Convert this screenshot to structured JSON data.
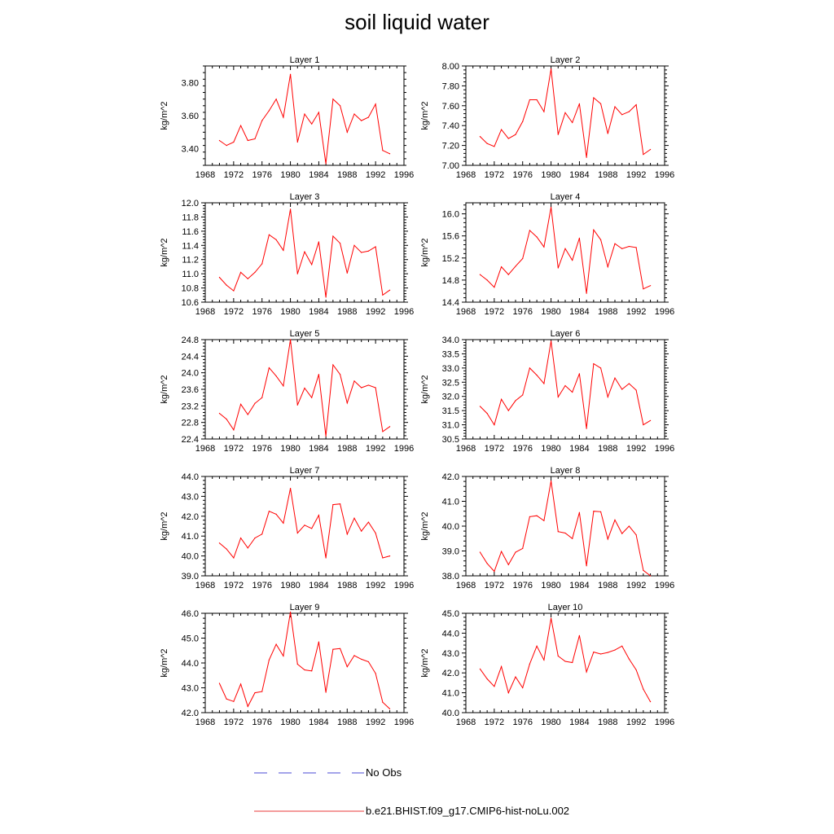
{
  "title": "soil liquid water",
  "legend": [
    {
      "label": "No Obs",
      "style": "dashed",
      "color": "#4a4ad6"
    },
    {
      "label": "b.e21.BHIST.f09_g17.CMIP6-hist-noLu.002",
      "style": "solid",
      "color": "#e8383a"
    }
  ],
  "chart_data": [
    {
      "type": "line",
      "title": "Layer 1",
      "ylabel": "kg/m^2",
      "xlim": [
        1968,
        1996
      ],
      "ylim": [
        3.3,
        3.9
      ],
      "xticks": [
        1968,
        1972,
        1976,
        1980,
        1984,
        1988,
        1992,
        1996
      ],
      "yticks": [
        "3.40",
        "3.60",
        "3.80"
      ],
      "grid": false,
      "series": [
        {
          "name": "b.e21.BHIST.f09_g17.CMIP6-hist-noLu.002",
          "color": "#ff0000",
          "x": [
            1970,
            1971,
            1972,
            1973,
            1974,
            1975,
            1976,
            1977,
            1978,
            1979,
            1980,
            1981,
            1982,
            1983,
            1984,
            1985,
            1986,
            1987,
            1988,
            1989,
            1990,
            1991,
            1992,
            1993,
            1994
          ],
          "y": [
            3.45,
            3.42,
            3.44,
            3.54,
            3.45,
            3.46,
            3.57,
            3.63,
            3.7,
            3.59,
            3.85,
            3.44,
            3.61,
            3.55,
            3.62,
            3.31,
            3.7,
            3.66,
            3.5,
            3.61,
            3.57,
            3.59,
            3.67,
            3.39,
            3.37
          ]
        }
      ]
    },
    {
      "type": "line",
      "title": "Layer 2",
      "ylabel": "kg/m^2",
      "xlim": [
        1968,
        1996
      ],
      "ylim": [
        7.0,
        8.0
      ],
      "xticks": [
        1968,
        1972,
        1976,
        1980,
        1984,
        1988,
        1992,
        1996
      ],
      "yticks": [
        "7.00",
        "7.20",
        "7.40",
        "7.60",
        "7.80",
        "8.00"
      ],
      "grid": false,
      "series": [
        {
          "name": "b.e21.BHIST.f09_g17.CMIP6-hist-noLu.002",
          "color": "#ff0000",
          "x": [
            1970,
            1971,
            1972,
            1973,
            1974,
            1975,
            1976,
            1977,
            1978,
            1979,
            1980,
            1981,
            1982,
            1983,
            1984,
            1985,
            1986,
            1987,
            1988,
            1989,
            1990,
            1991,
            1992,
            1993,
            1994
          ],
          "y": [
            7.29,
            7.22,
            7.19,
            7.36,
            7.27,
            7.31,
            7.44,
            7.66,
            7.66,
            7.54,
            7.97,
            7.31,
            7.53,
            7.43,
            7.62,
            7.08,
            7.68,
            7.62,
            7.32,
            7.59,
            7.51,
            7.54,
            7.61,
            7.11,
            7.16
          ]
        }
      ]
    },
    {
      "type": "line",
      "title": "Layer 3",
      "ylabel": "kg/m^2",
      "xlim": [
        1968,
        1996
      ],
      "ylim": [
        10.6,
        12.0
      ],
      "xticks": [
        1968,
        1972,
        1976,
        1980,
        1984,
        1988,
        1992,
        1996
      ],
      "yticks": [
        "10.6",
        "10.8",
        "11.0",
        "11.2",
        "11.4",
        "11.6",
        "11.8",
        "12.0"
      ],
      "grid": false,
      "series": [
        {
          "name": "b.e21.BHIST.f09_g17.CMIP6-hist-noLu.002",
          "color": "#ff0000",
          "x": [
            1970,
            1971,
            1972,
            1973,
            1974,
            1975,
            1976,
            1977,
            1978,
            1979,
            1980,
            1981,
            1982,
            1983,
            1984,
            1985,
            1986,
            1987,
            1988,
            1989,
            1990,
            1991,
            1992,
            1993,
            1994
          ],
          "y": [
            10.95,
            10.84,
            10.76,
            11.02,
            10.93,
            11.02,
            11.14,
            11.55,
            11.48,
            11.33,
            11.91,
            11.0,
            11.31,
            11.13,
            11.45,
            10.67,
            11.53,
            11.43,
            11.01,
            11.4,
            11.3,
            11.32,
            11.38,
            10.7,
            10.77
          ]
        }
      ]
    },
    {
      "type": "line",
      "title": "Layer 4",
      "ylabel": "kg/m^2",
      "xlim": [
        1968,
        1996
      ],
      "ylim": [
        14.4,
        16.2
      ],
      "xticks": [
        1968,
        1972,
        1976,
        1980,
        1984,
        1988,
        1992,
        1996
      ],
      "yticks": [
        "14.4",
        "14.8",
        "15.2",
        "15.6",
        "16.0"
      ],
      "grid": false,
      "series": [
        {
          "name": "b.e21.BHIST.f09_g17.CMIP6-hist-noLu.002",
          "color": "#ff0000",
          "x": [
            1970,
            1971,
            1972,
            1973,
            1974,
            1975,
            1976,
            1977,
            1978,
            1979,
            1980,
            1981,
            1982,
            1983,
            1984,
            1985,
            1986,
            1987,
            1988,
            1989,
            1990,
            1991,
            1992,
            1993,
            1994
          ],
          "y": [
            14.9,
            14.8,
            14.67,
            15.04,
            14.9,
            15.05,
            15.19,
            15.7,
            15.58,
            15.4,
            16.12,
            15.02,
            15.37,
            15.16,
            15.56,
            14.56,
            15.71,
            15.53,
            15.04,
            15.46,
            15.37,
            15.41,
            15.39,
            14.64,
            14.7
          ]
        }
      ]
    },
    {
      "type": "line",
      "title": "Layer 5",
      "ylabel": "kg/m^2",
      "xlim": [
        1968,
        1996
      ],
      "ylim": [
        22.4,
        24.8
      ],
      "xticks": [
        1968,
        1972,
        1976,
        1980,
        1984,
        1988,
        1992,
        1996
      ],
      "yticks": [
        "22.4",
        "22.8",
        "23.2",
        "23.6",
        "24.0",
        "24.4",
        "24.8"
      ],
      "grid": false,
      "series": [
        {
          "name": "b.e21.BHIST.f09_g17.CMIP6-hist-noLu.002",
          "color": "#ff0000",
          "x": [
            1970,
            1971,
            1972,
            1973,
            1974,
            1975,
            1976,
            1977,
            1978,
            1979,
            1980,
            1981,
            1982,
            1983,
            1984,
            1985,
            1986,
            1987,
            1988,
            1989,
            1990,
            1991,
            1992,
            1993,
            1994
          ],
          "y": [
            23.02,
            22.88,
            22.62,
            23.24,
            22.99,
            23.26,
            23.4,
            24.12,
            23.92,
            23.68,
            24.8,
            23.22,
            23.63,
            23.4,
            23.96,
            22.47,
            24.19,
            23.96,
            23.27,
            23.8,
            23.64,
            23.7,
            23.64,
            22.58,
            22.7
          ]
        }
      ]
    },
    {
      "type": "line",
      "title": "Layer 6",
      "ylabel": "kg/m^2",
      "xlim": [
        1968,
        1996
      ],
      "ylim": [
        30.5,
        34.0
      ],
      "xticks": [
        1968,
        1972,
        1976,
        1980,
        1984,
        1988,
        1992,
        1996
      ],
      "yticks": [
        "30.5",
        "31.0",
        "31.5",
        "32.0",
        "32.5",
        "33.0",
        "33.5",
        "34.0"
      ],
      "grid": false,
      "series": [
        {
          "name": "b.e21.BHIST.f09_g17.CMIP6-hist-noLu.002",
          "color": "#ff0000",
          "x": [
            1970,
            1971,
            1972,
            1973,
            1974,
            1975,
            1976,
            1977,
            1978,
            1979,
            1980,
            1981,
            1982,
            1983,
            1984,
            1985,
            1986,
            1987,
            1988,
            1989,
            1990,
            1991,
            1992,
            1993,
            1994
          ],
          "y": [
            31.65,
            31.4,
            31.0,
            31.9,
            31.5,
            31.85,
            32.05,
            33.0,
            32.75,
            32.45,
            33.95,
            31.98,
            32.38,
            32.15,
            32.8,
            30.87,
            33.15,
            33.0,
            31.98,
            32.65,
            32.25,
            32.45,
            32.22,
            31.0,
            31.15
          ]
        }
      ]
    },
    {
      "type": "line",
      "title": "Layer 7",
      "ylabel": "kg/m^2",
      "xlim": [
        1968,
        1996
      ],
      "ylim": [
        39.0,
        44.0
      ],
      "xticks": [
        1968,
        1972,
        1976,
        1980,
        1984,
        1988,
        1992,
        1996
      ],
      "yticks": [
        "39.0",
        "40.0",
        "41.0",
        "42.0",
        "43.0",
        "44.0"
      ],
      "grid": false,
      "series": [
        {
          "name": "b.e21.BHIST.f09_g17.CMIP6-hist-noLu.002",
          "color": "#ff0000",
          "x": [
            1970,
            1971,
            1972,
            1973,
            1974,
            1975,
            1976,
            1977,
            1978,
            1979,
            1980,
            1981,
            1982,
            1983,
            1984,
            1985,
            1986,
            1987,
            1988,
            1989,
            1990,
            1991,
            1992,
            1993,
            1994
          ],
          "y": [
            40.65,
            40.35,
            39.9,
            40.9,
            40.4,
            40.9,
            41.1,
            42.25,
            42.1,
            41.65,
            43.4,
            41.15,
            41.55,
            41.38,
            42.05,
            39.9,
            42.58,
            42.62,
            41.1,
            41.9,
            41.25,
            41.7,
            41.15,
            39.9,
            40.0
          ]
        }
      ]
    },
    {
      "type": "line",
      "title": "Layer 8",
      "ylabel": "kg/m^2",
      "xlim": [
        1968,
        1996
      ],
      "ylim": [
        38.0,
        42.0
      ],
      "xticks": [
        1968,
        1972,
        1976,
        1980,
        1984,
        1988,
        1992,
        1996
      ],
      "yticks": [
        "38.0",
        "39.0",
        "40.0",
        "41.0",
        "42.0"
      ],
      "grid": false,
      "series": [
        {
          "name": "b.e21.BHIST.f09_g17.CMIP6-hist-noLu.002",
          "color": "#ff0000",
          "x": [
            1970,
            1971,
            1972,
            1973,
            1974,
            1975,
            1976,
            1977,
            1978,
            1979,
            1980,
            1981,
            1982,
            1983,
            1984,
            1985,
            1986,
            1987,
            1988,
            1989,
            1990,
            1991,
            1992,
            1993,
            1994
          ],
          "y": [
            38.95,
            38.5,
            38.18,
            38.98,
            38.45,
            38.95,
            39.1,
            40.38,
            40.42,
            40.22,
            41.82,
            39.78,
            39.72,
            39.5,
            40.55,
            38.4,
            40.6,
            40.58,
            39.48,
            40.25,
            39.7,
            40.0,
            39.65,
            38.22,
            38.0
          ]
        }
      ]
    },
    {
      "type": "line",
      "title": "Layer 9",
      "ylabel": "kg/m^2",
      "xlim": [
        1968,
        1996
      ],
      "ylim": [
        42.0,
        46.0
      ],
      "xticks": [
        1968,
        1972,
        1976,
        1980,
        1984,
        1988,
        1992,
        1996
      ],
      "yticks": [
        "42.0",
        "43.0",
        "44.0",
        "45.0",
        "46.0"
      ],
      "grid": false,
      "series": [
        {
          "name": "b.e21.BHIST.f09_g17.CMIP6-hist-noLu.002",
          "color": "#ff0000",
          "x": [
            1970,
            1971,
            1972,
            1973,
            1974,
            1975,
            1976,
            1977,
            1978,
            1979,
            1980,
            1981,
            1982,
            1983,
            1984,
            1985,
            1986,
            1987,
            1988,
            1989,
            1990,
            1991,
            1992,
            1993,
            1994
          ],
          "y": [
            43.18,
            42.55,
            42.45,
            43.15,
            42.25,
            42.8,
            42.85,
            44.12,
            44.75,
            44.28,
            46.05,
            43.95,
            43.72,
            43.68,
            44.85,
            42.82,
            44.55,
            44.58,
            43.85,
            44.3,
            44.15,
            44.05,
            43.58,
            42.42,
            42.15
          ]
        }
      ]
    },
    {
      "type": "line",
      "title": "Layer 10",
      "ylabel": "kg/m^2",
      "xlim": [
        1968,
        1996
      ],
      "ylim": [
        40.0,
        45.0
      ],
      "xticks": [
        1968,
        1972,
        1976,
        1980,
        1984,
        1988,
        1992,
        1996
      ],
      "yticks": [
        "40.0",
        "41.0",
        "42.0",
        "43.0",
        "44.0",
        "45.0"
      ],
      "grid": false,
      "series": [
        {
          "name": "b.e21.BHIST.f09_g17.CMIP6-hist-noLu.002",
          "color": "#ff0000",
          "x": [
            1970,
            1971,
            1972,
            1973,
            1974,
            1975,
            1976,
            1977,
            1978,
            1979,
            1980,
            1981,
            1982,
            1983,
            1984,
            1985,
            1986,
            1987,
            1988,
            1989,
            1990,
            1991,
            1992,
            1993,
            1994
          ],
          "y": [
            42.2,
            41.7,
            41.32,
            42.32,
            41.0,
            41.8,
            41.25,
            42.45,
            43.35,
            42.65,
            44.75,
            42.85,
            42.58,
            42.52,
            43.88,
            42.05,
            43.05,
            42.95,
            43.03,
            43.15,
            43.35,
            42.7,
            42.15,
            41.18,
            40.55
          ]
        }
      ]
    }
  ]
}
